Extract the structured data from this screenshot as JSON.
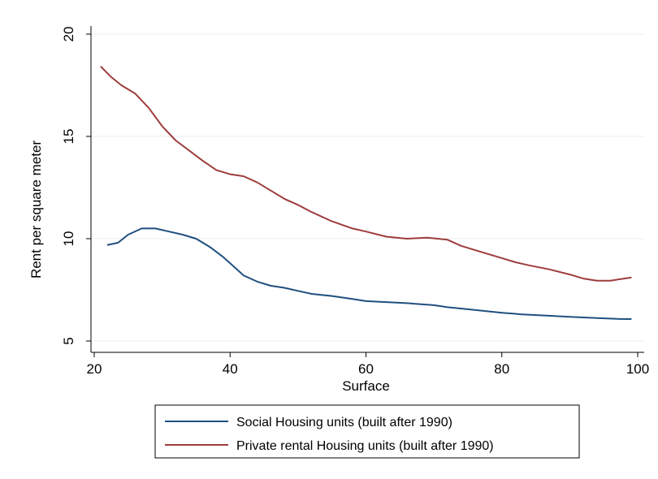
{
  "chart_data": {
    "type": "line",
    "title": "",
    "xlabel": "Surface",
    "ylabel": "Rent per square meter",
    "xlim": [
      20,
      100
    ],
    "ylim": [
      5,
      20
    ],
    "x_ticks": [
      "20",
      "40",
      "60",
      "80",
      "100"
    ],
    "y_ticks": [
      "5",
      "10",
      "15",
      "20"
    ],
    "grid": true,
    "legend_position": "bottom",
    "series": [
      {
        "name": "Social Housing units (built after 1990)",
        "color": "#1f4f7f",
        "points": [
          [
            22,
            9.7
          ],
          [
            23.5,
            9.8
          ],
          [
            25,
            10.2
          ],
          [
            27,
            10.5
          ],
          [
            29,
            10.5
          ],
          [
            31,
            10.35
          ],
          [
            33,
            10.2
          ],
          [
            35,
            10.0
          ],
          [
            37,
            9.6
          ],
          [
            39,
            9.1
          ],
          [
            40,
            8.8
          ],
          [
            42,
            8.2
          ],
          [
            44,
            7.9
          ],
          [
            46,
            7.7
          ],
          [
            48,
            7.6
          ],
          [
            50,
            7.45
          ],
          [
            52,
            7.3
          ],
          [
            55,
            7.2
          ],
          [
            58,
            7.05
          ],
          [
            60,
            6.95
          ],
          [
            63,
            6.9
          ],
          [
            66,
            6.85
          ],
          [
            70,
            6.75
          ],
          [
            72,
            6.65
          ],
          [
            75,
            6.55
          ],
          [
            78,
            6.45
          ],
          [
            80,
            6.38
          ],
          [
            83,
            6.3
          ],
          [
            86,
            6.25
          ],
          [
            90,
            6.18
          ],
          [
            94,
            6.12
          ],
          [
            97,
            6.08
          ],
          [
            99,
            6.07
          ]
        ]
      },
      {
        "name": "Private rental Housing units (built after 1990)",
        "color": "#9e3c3c",
        "points": [
          [
            21,
            18.4
          ],
          [
            22.5,
            17.9
          ],
          [
            24,
            17.5
          ],
          [
            26,
            17.1
          ],
          [
            28,
            16.4
          ],
          [
            30,
            15.5
          ],
          [
            32,
            14.8
          ],
          [
            34,
            14.3
          ],
          [
            36,
            13.8
          ],
          [
            38,
            13.35
          ],
          [
            40,
            13.15
          ],
          [
            42,
            13.05
          ],
          [
            44,
            12.75
          ],
          [
            46,
            12.35
          ],
          [
            48,
            11.95
          ],
          [
            50,
            11.65
          ],
          [
            52,
            11.3
          ],
          [
            55,
            10.85
          ],
          [
            58,
            10.5
          ],
          [
            60,
            10.35
          ],
          [
            63,
            10.1
          ],
          [
            66,
            10.0
          ],
          [
            69,
            10.05
          ],
          [
            72,
            9.95
          ],
          [
            74,
            9.65
          ],
          [
            77,
            9.35
          ],
          [
            80,
            9.05
          ],
          [
            82,
            8.85
          ],
          [
            84,
            8.7
          ],
          [
            87,
            8.5
          ],
          [
            90,
            8.25
          ],
          [
            92,
            8.05
          ],
          [
            94,
            7.95
          ],
          [
            96,
            7.95
          ],
          [
            98,
            8.05
          ],
          [
            99,
            8.1
          ]
        ]
      }
    ]
  }
}
